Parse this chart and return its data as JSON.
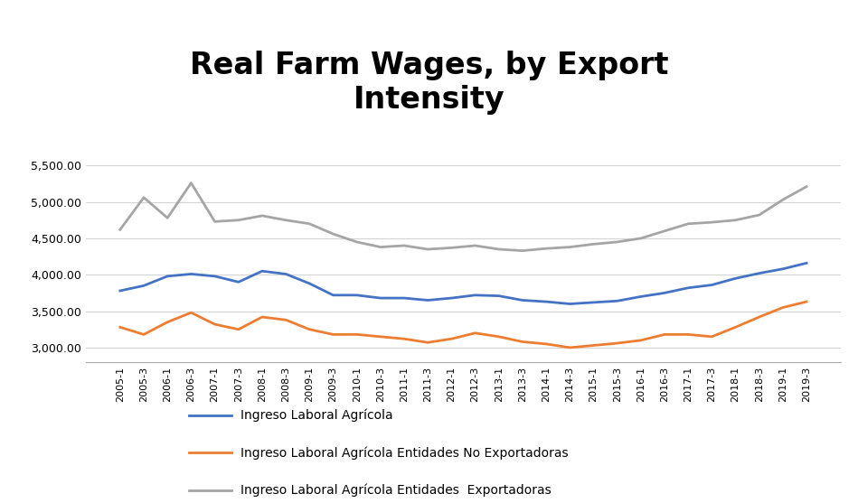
{
  "title": "Real Farm Wages, by Export\nIntensity",
  "x_labels": [
    "2005-1",
    "2005-3",
    "2006-1",
    "2006-3",
    "2007-1",
    "2007-3",
    "2008-1",
    "2008-3",
    "2009-1",
    "2009-3",
    "2010-1",
    "2010-3",
    "2011-1",
    "2011-3",
    "2012-1",
    "2012-3",
    "2013-1",
    "2013-3",
    "2014-1",
    "2014-3",
    "2015-1",
    "2015-3",
    "2016-1",
    "2016-3",
    "2017-1",
    "2017-3",
    "2018-1",
    "2018-3",
    "2019-1",
    "2019-3"
  ],
  "blue_line": [
    3780,
    3850,
    3980,
    4010,
    3980,
    3900,
    4050,
    4010,
    3880,
    3720,
    3720,
    3680,
    3680,
    3650,
    3680,
    3720,
    3710,
    3650,
    3630,
    3600,
    3620,
    3640,
    3700,
    3750,
    3820,
    3860,
    3950,
    4020,
    4080,
    4160
  ],
  "orange_line": [
    3280,
    3180,
    3350,
    3480,
    3320,
    3250,
    3420,
    3380,
    3250,
    3180,
    3180,
    3150,
    3120,
    3070,
    3120,
    3200,
    3150,
    3080,
    3050,
    3000,
    3030,
    3060,
    3100,
    3180,
    3180,
    3150,
    3280,
    3420,
    3550,
    3630
  ],
  "gray_line": [
    4620,
    5060,
    4780,
    5260,
    4730,
    4750,
    4810,
    4750,
    4700,
    4560,
    4450,
    4380,
    4400,
    4350,
    4370,
    4400,
    4350,
    4330,
    4360,
    4380,
    4420,
    4450,
    4500,
    4600,
    4700,
    4720,
    4750,
    4820,
    5030,
    5210
  ],
  "blue_color": "#4472C4",
  "orange_color": "#ED7D31",
  "gray_color": "#A5A5A5",
  "legend_labels": [
    "Ingreso Laboral Agrícola",
    "Ingreso Laboral Agrícola Entidades No Exportadoras",
    "Ingreso Laboral Agrícola Entidades  Exportadoras"
  ],
  "ylim": [
    2800,
    5700
  ],
  "yticks": [
    3000,
    3500,
    4000,
    4500,
    5000,
    5500
  ],
  "background_color": "#ffffff",
  "line_width": 2.0,
  "title_fontsize": 24,
  "tick_fontsize": 9,
  "legend_fontsize": 10
}
